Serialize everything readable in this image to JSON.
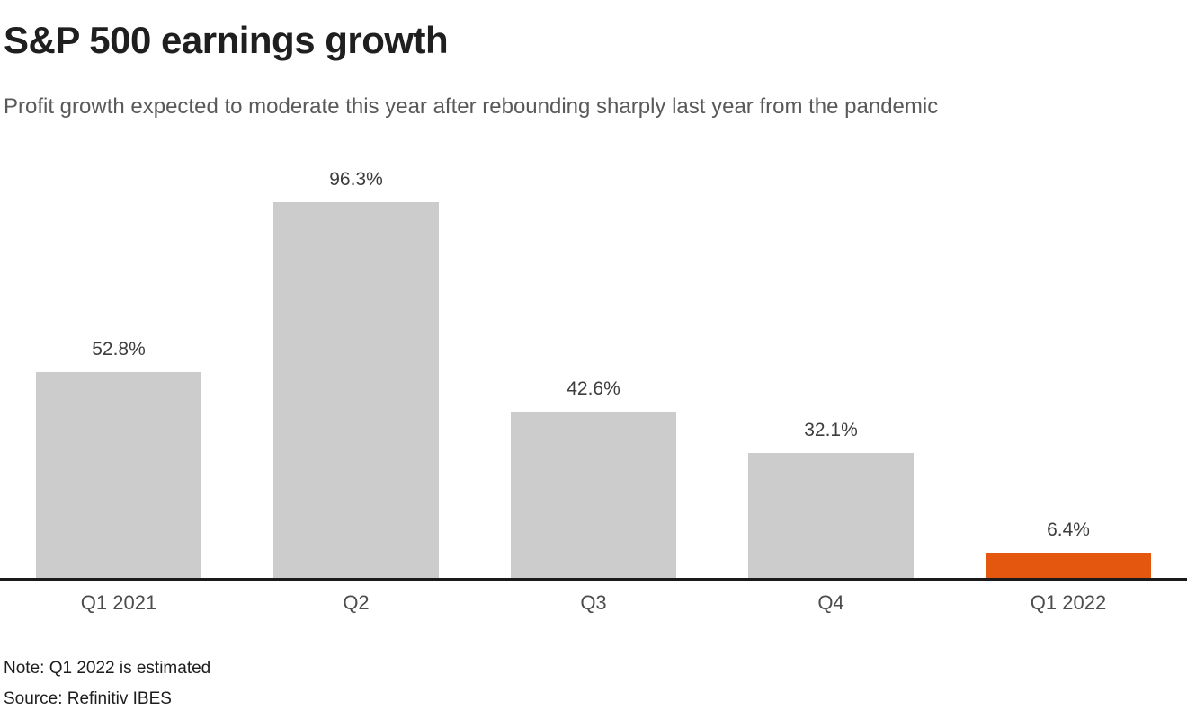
{
  "header": {
    "title": "S&P 500 earnings growth",
    "subtitle": "Profit growth expected to moderate this year after rebounding sharply last year from the pandemic"
  },
  "chart_data": {
    "type": "bar",
    "title": "S&P 500 earnings growth",
    "subtitle": "Profit growth expected to moderate this year after rebounding sharply last year from the pandemic",
    "categories": [
      "Q1 2021",
      "Q2",
      "Q3",
      "Q4",
      "Q1 2022"
    ],
    "values": [
      52.8,
      96.3,
      42.6,
      32.1,
      6.4
    ],
    "value_labels": [
      "52.8%",
      "96.3%",
      "42.6%",
      "32.1%",
      "6.4%"
    ],
    "bar_colors": [
      "#cccccc",
      "#cccccc",
      "#cccccc",
      "#cccccc",
      "#e4570e"
    ],
    "default_bar_color": "#cccccc",
    "highlight_color": "#e4570e",
    "axis_line_color": "#1a1a1a",
    "xlabel": "",
    "ylabel": "",
    "ylim": [
      0,
      100
    ],
    "grid": false,
    "legend": false,
    "note": "Note: Q1 2022 is estimated",
    "source": "Source: Refinitiv IBES"
  },
  "footer": {
    "note": "Note: Q1 2022 is estimated",
    "source": "Source: Refinitiv IBES"
  }
}
